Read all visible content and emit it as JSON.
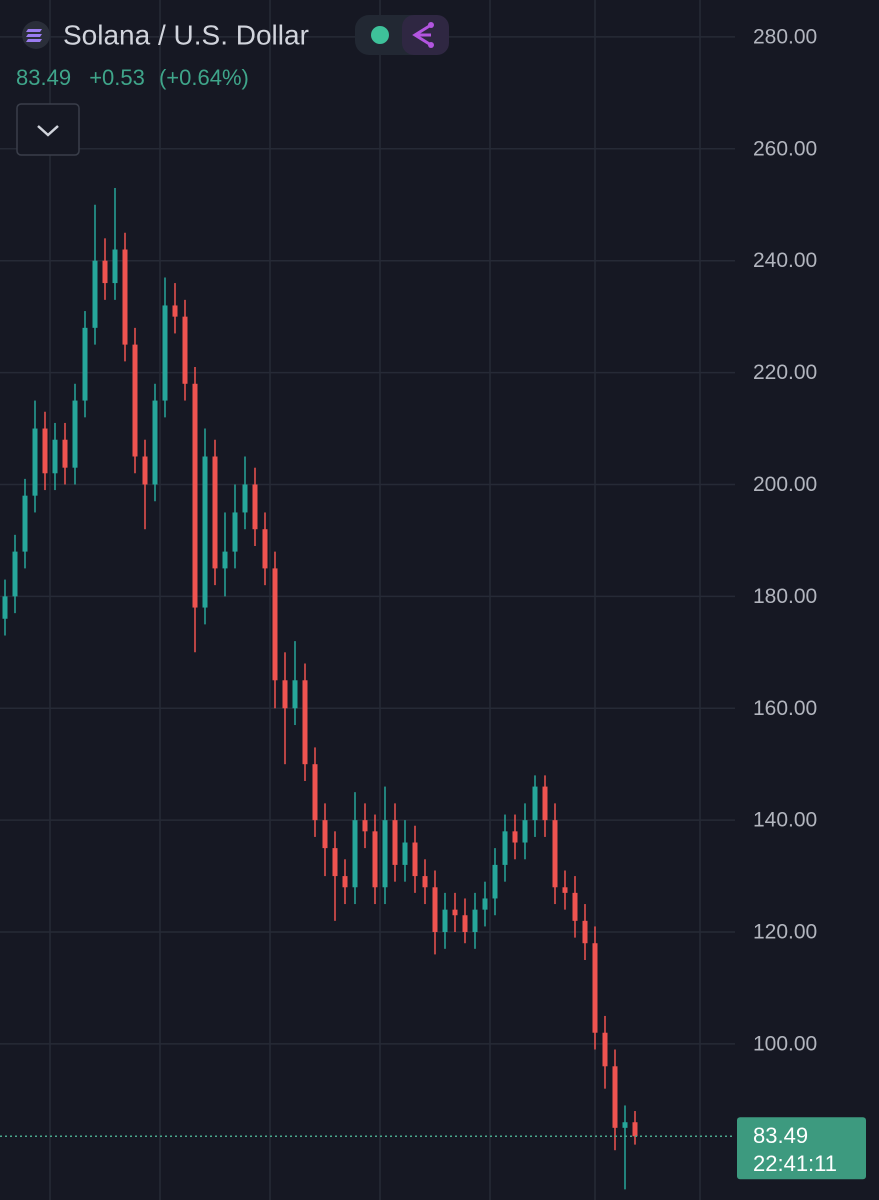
{
  "chart_data": {
    "type": "candlestick",
    "title": "Solana / U.S. Dollar",
    "quote": {
      "price": 83.49,
      "change": "+0.53",
      "change_pct": "(+0.64%)",
      "time": "22:41:11"
    },
    "up_color": "#26a69a",
    "down_color": "#ef5350",
    "ylim": [
      72.1,
      286.6
    ],
    "yticks": [
      {
        "value": 100,
        "label": "100.00"
      },
      {
        "value": 120,
        "label": "120.00"
      },
      {
        "value": 140,
        "label": "140.00"
      },
      {
        "value": 160,
        "label": "160.00"
      },
      {
        "value": 180,
        "label": "180.00"
      },
      {
        "value": 200,
        "label": "200.00"
      },
      {
        "value": 220,
        "label": "220.00"
      },
      {
        "value": 240,
        "label": "240.00"
      },
      {
        "value": 260,
        "label": "260.00"
      },
      {
        "value": 280,
        "label": "280.00"
      }
    ],
    "grid": true,
    "open": [
      176,
      180,
      188,
      198,
      210,
      202,
      208,
      203,
      215,
      228,
      240,
      236,
      242,
      225,
      205,
      200,
      215,
      232,
      230,
      218,
      178,
      205,
      185,
      188,
      195,
      200,
      192,
      185,
      165,
      160,
      165,
      150,
      140,
      135,
      130,
      128,
      140,
      138,
      128,
      140,
      132,
      136,
      130,
      128,
      120,
      124,
      123,
      120,
      124,
      126,
      132,
      138,
      136,
      140,
      146,
      140,
      128,
      127,
      122,
      118,
      102,
      96,
      85,
      86
    ],
    "high": [
      183,
      191,
      201,
      215,
      213,
      211,
      211,
      218,
      231,
      250,
      244,
      253,
      245,
      228,
      208,
      218,
      237,
      236,
      233,
      221,
      210,
      208,
      195,
      200,
      205,
      203,
      195,
      188,
      170,
      172,
      168,
      153,
      143,
      138,
      133,
      145,
      143,
      141,
      146,
      143,
      140,
      139,
      133,
      131,
      127,
      127,
      126,
      127,
      129,
      135,
      141,
      141,
      143,
      148,
      148,
      143,
      131,
      130,
      125,
      121,
      105,
      99,
      89,
      88
    ],
    "low": [
      173,
      177,
      185,
      195,
      199,
      199,
      200,
      200,
      212,
      225,
      233,
      233,
      222,
      202,
      192,
      197,
      212,
      227,
      215,
      170,
      175,
      182,
      180,
      185,
      192,
      189,
      182,
      160,
      150,
      157,
      147,
      137,
      130,
      122,
      125,
      125,
      135,
      125,
      125,
      129,
      129,
      127,
      125,
      116,
      117,
      120,
      118,
      117,
      121,
      123,
      129,
      133,
      133,
      137,
      137,
      125,
      124,
      119,
      115,
      99,
      92,
      81,
      74,
      82
    ],
    "close": [
      180,
      188,
      198,
      210,
      202,
      208,
      203,
      215,
      228,
      240,
      236,
      242,
      225,
      205,
      200,
      215,
      232,
      230,
      218,
      178,
      205,
      185,
      188,
      195,
      200,
      192,
      185,
      165,
      160,
      165,
      150,
      140,
      135,
      130,
      128,
      140,
      138,
      128,
      140,
      132,
      136,
      130,
      128,
      120,
      124,
      123,
      120,
      124,
      126,
      132,
      138,
      136,
      140,
      146,
      140,
      128,
      127,
      122,
      118,
      102,
      96,
      85,
      86,
      83.49
    ]
  }
}
